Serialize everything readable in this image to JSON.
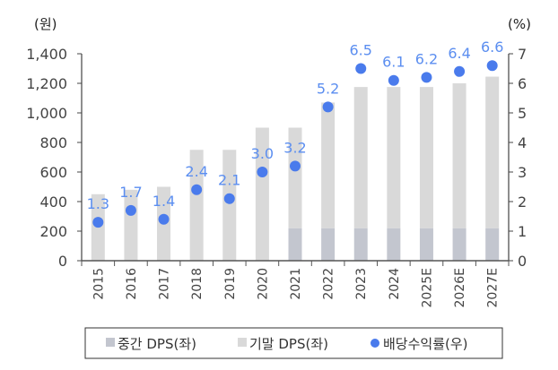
{
  "chart_data": {
    "type": "bar",
    "categories": [
      "2015",
      "2016",
      "2017",
      "2018",
      "2019",
      "2020",
      "2021",
      "2022",
      "2023",
      "2024",
      "2025E",
      "2026E",
      "2027E"
    ],
    "left_axis": {
      "unit_label": "(원)",
      "ylim": [
        0,
        1400
      ],
      "ticks": [
        0,
        200,
        400,
        600,
        800,
        1000,
        1200,
        1400
      ],
      "tick_labels": [
        "0",
        "200",
        "400",
        "600",
        "800",
        "1,000",
        "1,200",
        "1,400"
      ]
    },
    "right_axis": {
      "unit_label": "(%)",
      "ylim": [
        0,
        7
      ],
      "ticks": [
        0,
        1,
        2,
        3,
        4,
        5,
        6,
        7
      ],
      "tick_labels": [
        "0",
        "1",
        "2",
        "3",
        "4",
        "5",
        "6",
        "7"
      ]
    },
    "series": [
      {
        "name": "중간 DPS(좌)",
        "type": "bar",
        "axis": "left",
        "stacked": true,
        "color": "#c3c6cf",
        "values": [
          0,
          0,
          0,
          0,
          0,
          0,
          220,
          220,
          220,
          220,
          220,
          220,
          220
        ]
      },
      {
        "name": "기말 DPS(좌)",
        "type": "bar",
        "axis": "left",
        "stacked": true,
        "color": "#d9d9d9",
        "values": [
          450,
          480,
          500,
          750,
          750,
          900,
          680,
          850,
          955,
          955,
          955,
          980,
          1025
        ]
      },
      {
        "name": "배당수익률(우)",
        "type": "scatter",
        "axis": "right",
        "color": "#4a7bec",
        "label_color": "#5b8ef0",
        "values": [
          1.3,
          1.7,
          1.4,
          2.4,
          2.1,
          3.0,
          3.2,
          5.2,
          6.5,
          6.1,
          6.2,
          6.4,
          6.6
        ],
        "data_labels": [
          "1.3",
          "1.7",
          "1.4",
          "2.4",
          "2.1",
          "3.0",
          "3.2",
          "5.2",
          "6.5",
          "6.1",
          "6.2",
          "6.4",
          "6.6"
        ]
      }
    ],
    "legend_placement": "bottom",
    "grid": false
  }
}
